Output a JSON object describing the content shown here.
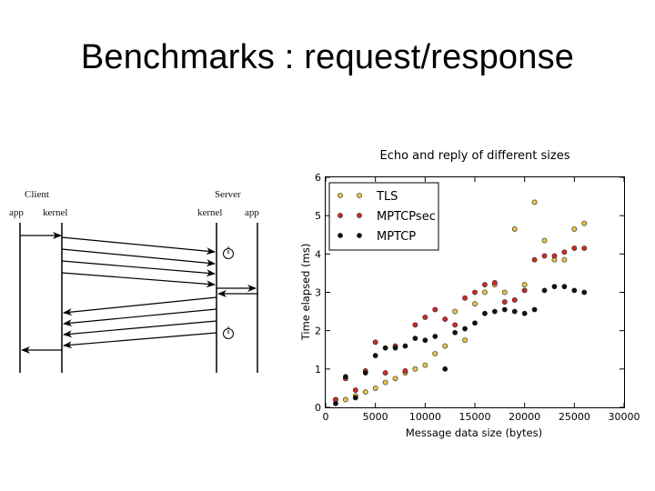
{
  "slide": {
    "title": "Benchmarks : request/response"
  },
  "diagram": {
    "client_label": "Client",
    "server_label": "Server",
    "client_app": "app",
    "client_kernel": "kernel",
    "server_kernel": "kernel",
    "server_app": "app"
  },
  "chart_data": {
    "type": "scatter",
    "title": "Echo and reply of different sizes",
    "xlabel": "Message data size (bytes)",
    "ylabel": "Time elapsed (ms)",
    "xlim": [
      0,
      30000
    ],
    "ylim": [
      0,
      6
    ],
    "xticks": [
      "0",
      "5000",
      "10000",
      "15000",
      "20000",
      "25000",
      "30000"
    ],
    "yticks": [
      "0",
      "1",
      "2",
      "3",
      "4",
      "5",
      "6"
    ],
    "grid": false,
    "legend_position": "top-left",
    "series": [
      {
        "name": "TLS",
        "color": "#e8c547",
        "points": [
          [
            1000,
            0.2
          ],
          [
            2000,
            0.2
          ],
          [
            3000,
            0.3
          ],
          [
            4000,
            0.4
          ],
          [
            5000,
            0.5
          ],
          [
            6000,
            0.65
          ],
          [
            7000,
            0.75
          ],
          [
            8000,
            0.9
          ],
          [
            9000,
            1.0
          ],
          [
            10000,
            1.1
          ],
          [
            11000,
            1.4
          ],
          [
            12000,
            1.6
          ],
          [
            13000,
            2.5
          ],
          [
            14000,
            1.75
          ],
          [
            15000,
            2.7
          ],
          [
            16000,
            3.0
          ],
          [
            17000,
            3.2
          ],
          [
            18000,
            3.0
          ],
          [
            19000,
            4.65
          ],
          [
            20000,
            3.2
          ],
          [
            21000,
            5.35
          ],
          [
            22000,
            4.35
          ],
          [
            23000,
            3.85
          ],
          [
            24000,
            3.85
          ],
          [
            25000,
            4.65
          ],
          [
            26000,
            4.8
          ]
        ]
      },
      {
        "name": "MPTCPsec",
        "color": "#d42a20",
        "points": [
          [
            1000,
            0.2
          ],
          [
            2000,
            0.75
          ],
          [
            3000,
            0.45
          ],
          [
            4000,
            0.95
          ],
          [
            5000,
            1.7
          ],
          [
            6000,
            0.9
          ],
          [
            7000,
            1.6
          ],
          [
            8000,
            0.95
          ],
          [
            9000,
            2.15
          ],
          [
            10000,
            2.35
          ],
          [
            11000,
            2.55
          ],
          [
            12000,
            2.3
          ],
          [
            13000,
            2.15
          ],
          [
            14000,
            2.85
          ],
          [
            15000,
            3.0
          ],
          [
            16000,
            3.2
          ],
          [
            17000,
            3.25
          ],
          [
            18000,
            2.75
          ],
          [
            19000,
            2.8
          ],
          [
            20000,
            3.05
          ],
          [
            21000,
            3.85
          ],
          [
            22000,
            3.95
          ],
          [
            23000,
            3.95
          ],
          [
            24000,
            4.05
          ],
          [
            25000,
            4.15
          ],
          [
            26000,
            4.15
          ]
        ]
      },
      {
        "name": "MPTCP",
        "color": "#111111",
        "points": [
          [
            1000,
            0.1
          ],
          [
            2000,
            0.8
          ],
          [
            3000,
            0.25
          ],
          [
            4000,
            0.9
          ],
          [
            5000,
            1.35
          ],
          [
            6000,
            1.55
          ],
          [
            7000,
            1.55
          ],
          [
            8000,
            1.6
          ],
          [
            9000,
            1.8
          ],
          [
            10000,
            1.75
          ],
          [
            11000,
            1.85
          ],
          [
            12000,
            1.0
          ],
          [
            13000,
            1.95
          ],
          [
            14000,
            2.05
          ],
          [
            15000,
            2.2
          ],
          [
            16000,
            2.45
          ],
          [
            17000,
            2.5
          ],
          [
            18000,
            2.55
          ],
          [
            19000,
            2.5
          ],
          [
            20000,
            2.45
          ],
          [
            21000,
            2.55
          ],
          [
            22000,
            3.05
          ],
          [
            23000,
            3.15
          ],
          [
            24000,
            3.15
          ],
          [
            25000,
            3.05
          ],
          [
            26000,
            3.0
          ]
        ]
      }
    ]
  }
}
